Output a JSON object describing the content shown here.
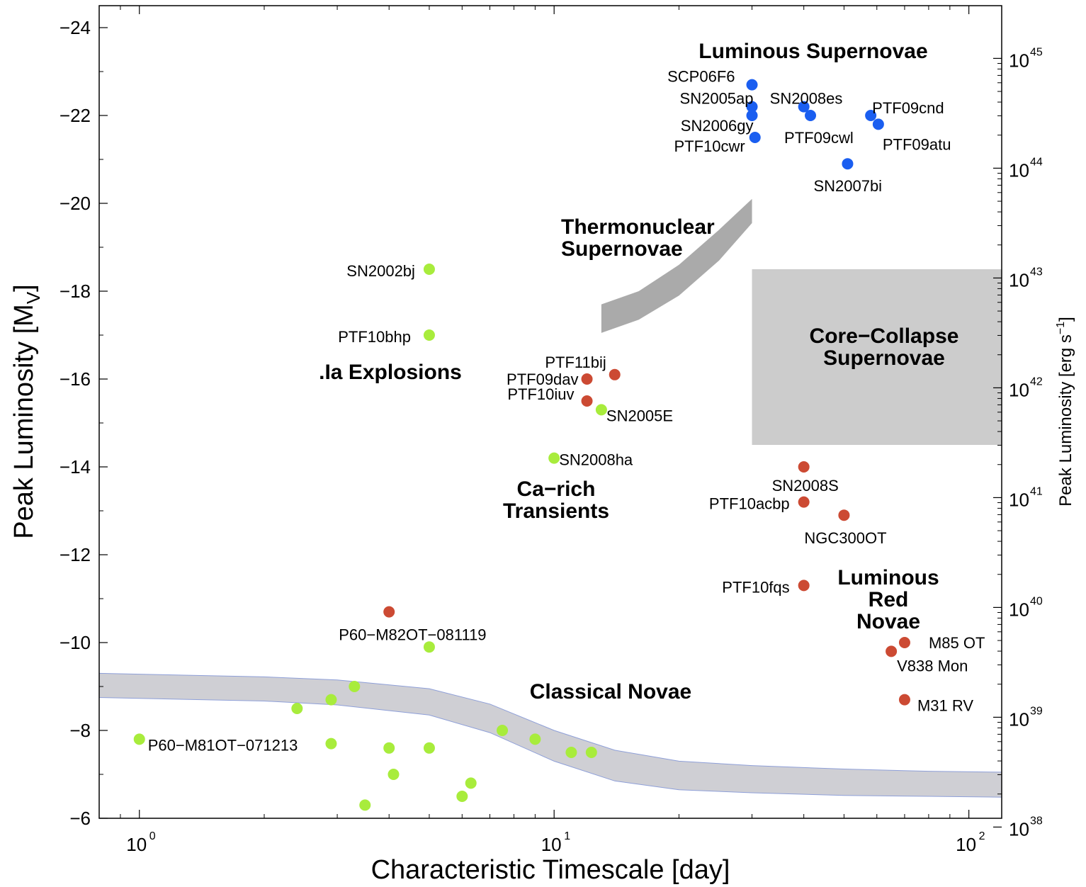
{
  "chart_data": {
    "type": "scatter",
    "xlabel": "Characteristic Timescale [day]",
    "ylabel": "Peak Luminosity [M_V]",
    "ylabel_sub": "V",
    "ylabel_right": "Peak Luminosity [erg s",
    "ylabel_right_sup": "−1",
    "ylabel_right_end": "]",
    "xscale": "log",
    "xlim": [
      0.8,
      120
    ],
    "ylim": [
      -6,
      -24.5
    ],
    "y_inverted": true,
    "x_ticks": [
      {
        "value": 1,
        "base": "10",
        "exp": "0"
      },
      {
        "value": 10,
        "base": "10",
        "exp": "1"
      },
      {
        "value": 100,
        "base": "10",
        "exp": "2"
      }
    ],
    "y_ticks": [
      {
        "value": -24,
        "label": "−24"
      },
      {
        "value": -22,
        "label": "−22"
      },
      {
        "value": -20,
        "label": "−20"
      },
      {
        "value": -18,
        "label": "−18"
      },
      {
        "value": -16,
        "label": "−16"
      },
      {
        "value": -14,
        "label": "−14"
      },
      {
        "value": -12,
        "label": "−12"
      },
      {
        "value": -10,
        "label": "−10"
      },
      {
        "value": -8,
        "label": "−8"
      },
      {
        "value": -6,
        "label": "−6"
      }
    ],
    "y_right_ticks": [
      {
        "mag": -23.3,
        "base": "10",
        "exp": "45"
      },
      {
        "mag": -20.8,
        "base": "10",
        "exp": "44"
      },
      {
        "mag": -18.3,
        "base": "10",
        "exp": "43"
      },
      {
        "mag": -15.8,
        "base": "10",
        "exp": "42"
      },
      {
        "mag": -13.3,
        "base": "10",
        "exp": "41"
      },
      {
        "mag": -10.8,
        "base": "10",
        "exp": "40"
      },
      {
        "mag": -8.3,
        "base": "10",
        "exp": "39"
      },
      {
        "mag": -5.8,
        "base": "10",
        "exp": "38"
      }
    ],
    "colors": {
      "blue": "#1a5ef0",
      "red": "#cc4a33",
      "green": "#a8ec3c",
      "region_fill": "#cccccc",
      "thermo_fill": "#aaaaaa",
      "novae_band": "#cfcfd4",
      "novae_edge": "#8e9fd8"
    },
    "series": [
      {
        "name": "Luminous Supernovae",
        "color": "blue",
        "points": [
          {
            "x": 30,
            "y": -22.7,
            "label": "SCP06F6"
          },
          {
            "x": 30,
            "y": -22.2,
            "label": "SN2005ap"
          },
          {
            "x": 30,
            "y": -22.0,
            "label": "SN2006gy"
          },
          {
            "x": 30.5,
            "y": -21.5,
            "label": "PTF10cwr"
          },
          {
            "x": 40,
            "y": -22.2,
            "label": "SN2008es"
          },
          {
            "x": 41.5,
            "y": -22.0,
            "label": "PTF09cwl"
          },
          {
            "x": 58,
            "y": -22.0,
            "label": "PTF09cnd"
          },
          {
            "x": 60.5,
            "y": -21.8,
            "label": "PTF09atu"
          },
          {
            "x": 51,
            "y": -20.9,
            "label": "SN2007bi"
          }
        ]
      },
      {
        "name": "Red",
        "color": "red",
        "points": [
          {
            "x": 14,
            "y": -16.1,
            "label": "PTF11bij"
          },
          {
            "x": 12,
            "y": -16.0,
            "label": "PTF09dav"
          },
          {
            "x": 12,
            "y": -15.5,
            "label": "PTF10iuv"
          },
          {
            "x": 40,
            "y": -14.0,
            "label": "SN2008S"
          },
          {
            "x": 40,
            "y": -13.2,
            "label": "PTF10acbp"
          },
          {
            "x": 50,
            "y": -12.9,
            "label": "NGC300OT"
          },
          {
            "x": 40,
            "y": -11.3,
            "label": "PTF10fqs"
          },
          {
            "x": 4,
            "y": -10.7,
            "label": "P60−M82OT−081119"
          },
          {
            "x": 70,
            "y": -10.0,
            "label": "M85 OT"
          },
          {
            "x": 65,
            "y": -9.8,
            "label": "V838 Mon"
          },
          {
            "x": 70,
            "y": -8.7,
            "label": "M31 RV"
          }
        ]
      },
      {
        "name": "Green",
        "color": "green",
        "points": [
          {
            "x": 5,
            "y": -18.5,
            "label": "SN2002bj"
          },
          {
            "x": 5,
            "y": -17.0,
            "label": "PTF10bhp"
          },
          {
            "x": 13,
            "y": -15.3,
            "label": "SN2005E"
          },
          {
            "x": 10,
            "y": -14.2,
            "label": "SN2008ha"
          },
          {
            "x": 5,
            "y": -9.9,
            "label": ""
          },
          {
            "x": 1,
            "y": -7.8,
            "label": "P60−M81OT−071213"
          },
          {
            "x": 2.4,
            "y": -8.5,
            "label": ""
          },
          {
            "x": 2.9,
            "y": -8.7,
            "label": ""
          },
          {
            "x": 3.3,
            "y": -9.0,
            "label": ""
          },
          {
            "x": 2.9,
            "y": -7.7,
            "label": ""
          },
          {
            "x": 4,
            "y": -7.6,
            "label": ""
          },
          {
            "x": 5,
            "y": -7.6,
            "label": ""
          },
          {
            "x": 4.1,
            "y": -7.0,
            "label": ""
          },
          {
            "x": 3.5,
            "y": -6.3,
            "label": ""
          },
          {
            "x": 6,
            "y": -6.5,
            "label": ""
          },
          {
            "x": 6.3,
            "y": -6.8,
            "label": ""
          },
          {
            "x": 7.5,
            "y": -8.0,
            "label": ""
          },
          {
            "x": 9,
            "y": -7.8,
            "label": ""
          },
          {
            "x": 11,
            "y": -7.5,
            "label": ""
          },
          {
            "x": 12.3,
            "y": -7.5,
            "label": ""
          }
        ]
      }
    ],
    "regions": [
      {
        "name": "core-collapse",
        "lines": [
          "Core−Collapse",
          "Supernovae"
        ],
        "x_range": [
          30,
          120
        ],
        "y_range": [
          -14.5,
          -18.5
        ]
      },
      {
        "name": "thermonuclear",
        "lines": [
          "Thermonuclear",
          "Supernovae"
        ]
      },
      {
        "name": "classical-novae",
        "lines": [
          "Classical Novae"
        ]
      }
    ],
    "annotations": [
      {
        "name": "luminous-supernovae",
        "lines": [
          "Luminous Supernovae"
        ]
      },
      {
        "name": "ia-explosions",
        "lines": [
          ".Ia Explosions"
        ]
      },
      {
        "name": "ca-rich",
        "lines": [
          "Ca−rich",
          "Transients"
        ]
      },
      {
        "name": "luminous-red-novae",
        "lines": [
          "Luminous",
          "Red",
          "Novae"
        ]
      }
    ]
  }
}
